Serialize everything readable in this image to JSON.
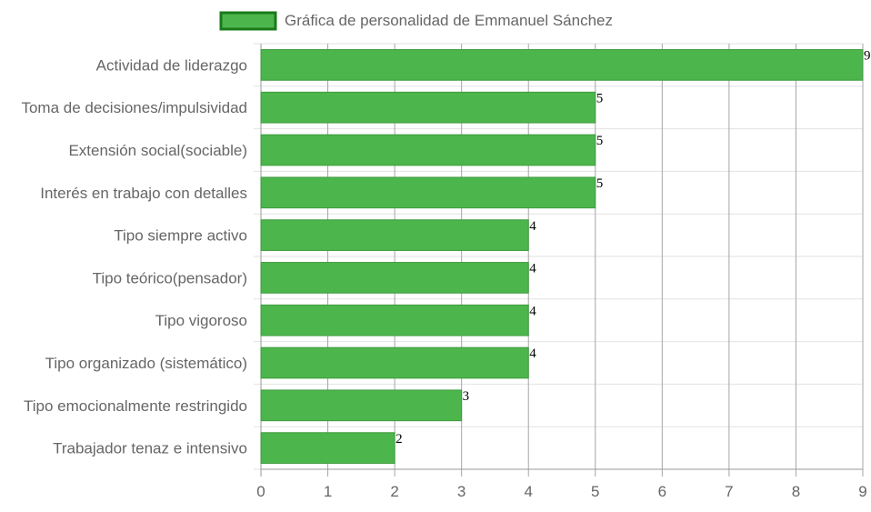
{
  "chart_data": {
    "type": "bar",
    "orientation": "horizontal",
    "legend_position": "top",
    "grid": true,
    "categories": [
      "Actividad de liderazgo",
      "Toma de decisiones/impulsividad",
      "Extensión social(sociable)",
      "Interés en trabajo con detalles",
      "Tipo siempre activo",
      "Tipo teórico(pensador)",
      "Tipo vigoroso",
      "Tipo organizado (sistemático)",
      "Tipo emocionalmente restringido",
      "Trabajador tenaz e intensivo"
    ],
    "series": [
      {
        "name": "Gráfica de personalidad de Emmanuel Sánchez",
        "values": [
          9,
          5,
          5,
          5,
          4,
          4,
          4,
          4,
          3,
          2
        ]
      }
    ],
    "data_labels": [
      "9",
      "5",
      "5",
      "5",
      "4",
      "4",
      "4",
      "4",
      "3",
      "2"
    ],
    "xlim": [
      0,
      9
    ],
    "x_ticks": [
      "0",
      "1",
      "2",
      "3",
      "4",
      "5",
      "6",
      "7",
      "8",
      "9"
    ],
    "title": "",
    "xlabel": "",
    "ylabel": "",
    "colors": {
      "bar_fill": "#4cb54c",
      "bar_border": "#3e9c3e",
      "legend_border": "#1a7a1a",
      "grid": "#e2e2e2",
      "vertical_grid": "#a6a6a6",
      "axis": "#9a9a9a",
      "label": "#666666"
    }
  }
}
